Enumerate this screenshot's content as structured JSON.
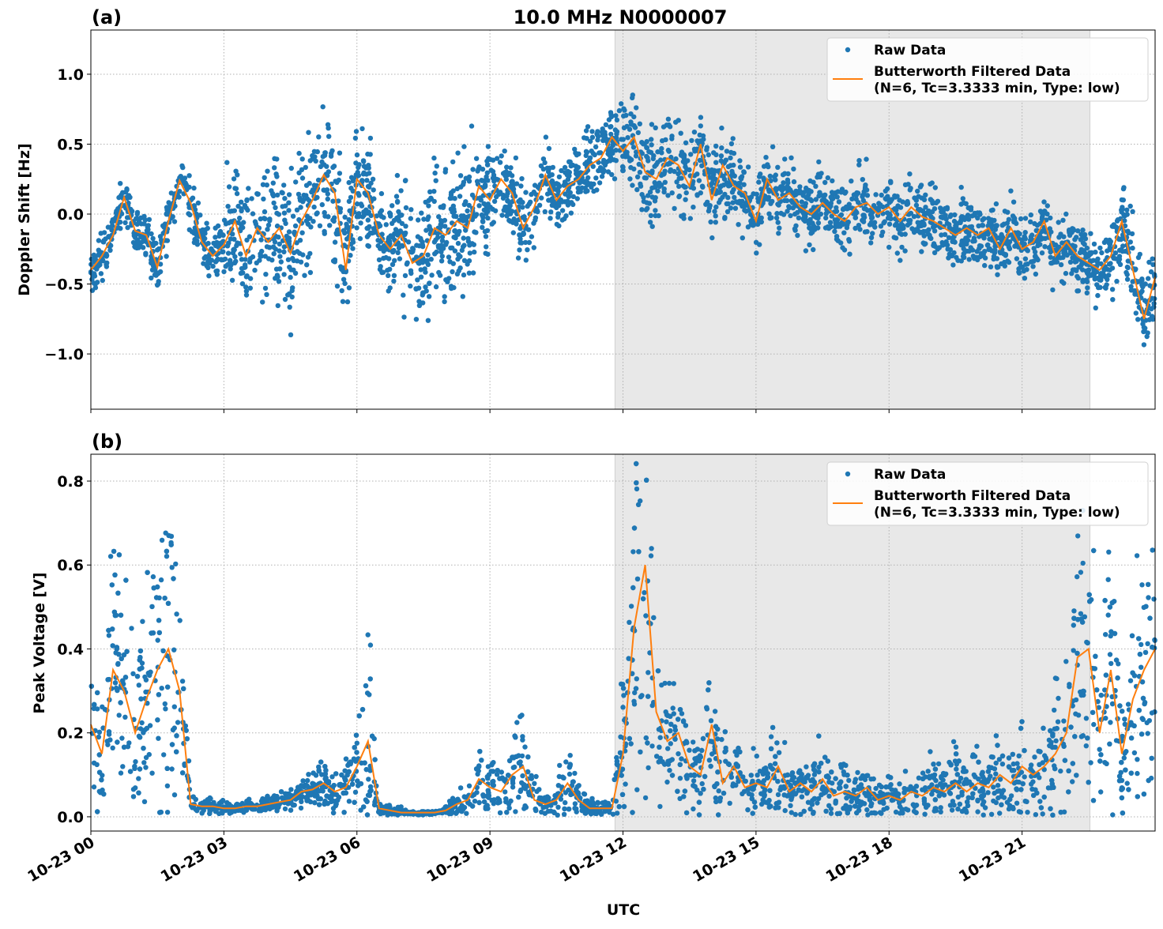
{
  "chart_data": [
    {
      "type": "scatter",
      "panel_label": "(a)",
      "title": "10.0 MHz N0000007",
      "xlabel": "",
      "ylabel": "Doppler Shift [Hz]",
      "xlim_hours": [
        0,
        24
      ],
      "ylim": [
        -1.395,
        1.316
      ],
      "yticks": [
        -1.0,
        -0.5,
        0.0,
        0.5,
        1.0
      ],
      "ytick_labels": [
        "−1.0",
        "−0.5",
        "0.0",
        "0.5",
        "1.0"
      ],
      "grid": true,
      "legend_placement": "top-right",
      "shaded_interval_utc": [
        "10-23 11:49",
        "10-23 22:32"
      ],
      "shaded_interval_hours": [
        11.82,
        22.53
      ],
      "series": [
        {
          "name": "Raw Data",
          "kind": "scatter",
          "color": "#1f77b4",
          "spread_per_hour": [
            0.12,
            0.15,
            0.15,
            0.4,
            0.45,
            0.4,
            0.3,
            0.4,
            0.4,
            0.25,
            0.2,
            0.2,
            0.3,
            0.3,
            0.25,
            0.2,
            0.2,
            0.2,
            0.2,
            0.2,
            0.2,
            0.2,
            0.2,
            0.3,
            0.35
          ]
        },
        {
          "name": "Butterworth Filtered Data\n(N=6, Tc=3.3333 min, Type: low)",
          "kind": "line",
          "color": "#ff7f0e",
          "x_step_hours": 0.25,
          "values": [
            -0.4,
            -0.3,
            -0.15,
            0.12,
            -0.12,
            -0.15,
            -0.38,
            -0.05,
            0.24,
            0.08,
            -0.2,
            -0.3,
            -0.22,
            -0.05,
            -0.3,
            -0.1,
            -0.2,
            -0.1,
            -0.28,
            -0.05,
            0.1,
            0.28,
            0.15,
            -0.4,
            0.25,
            0.15,
            -0.15,
            -0.25,
            -0.15,
            -0.35,
            -0.3,
            -0.1,
            -0.15,
            -0.05,
            -0.1,
            0.2,
            0.1,
            0.25,
            0.15,
            -0.1,
            0.05,
            0.28,
            0.1,
            0.2,
            0.25,
            0.35,
            0.4,
            0.55,
            0.45,
            0.55,
            0.3,
            0.25,
            0.4,
            0.35,
            0.2,
            0.5,
            0.1,
            0.35,
            0.2,
            0.15,
            -0.05,
            0.25,
            0.1,
            0.15,
            0.05,
            0.0,
            0.08,
            0.0,
            -0.05,
            0.05,
            0.08,
            0.0,
            0.05,
            -0.05,
            0.05,
            -0.02,
            -0.05,
            -0.1,
            -0.15,
            -0.1,
            -0.15,
            -0.1,
            -0.25,
            -0.1,
            -0.25,
            -0.2,
            -0.05,
            -0.3,
            -0.2,
            -0.3,
            -0.35,
            -0.4,
            -0.3,
            -0.05,
            -0.4,
            -0.75,
            -0.45
          ]
        }
      ]
    },
    {
      "type": "scatter",
      "panel_label": "(b)",
      "xlabel": "UTC",
      "ylabel": "Peak Voltage [V]",
      "xlim_hours": [
        0,
        24
      ],
      "ylim": [
        -0.034,
        0.864
      ],
      "yticks": [
        0.0,
        0.2,
        0.4,
        0.6,
        0.8
      ],
      "ytick_labels": [
        "0.0",
        "0.2",
        "0.4",
        "0.6",
        "0.8"
      ],
      "xticks_hours": [
        0,
        3,
        6,
        9,
        12,
        15,
        18,
        21
      ],
      "xtick_labels": [
        "10-23 00",
        "10-23 03",
        "10-23 06",
        "10-23 09",
        "10-23 12",
        "10-23 15",
        "10-23 18",
        "10-23 21"
      ],
      "grid": true,
      "legend_placement": "top-right",
      "shaded_interval_utc": [
        "10-23 11:49",
        "10-23 22:32"
      ],
      "shaded_interval_hours": [
        11.82,
        22.53
      ],
      "series": [
        {
          "name": "Raw Data",
          "kind": "scatter",
          "color": "#1f77b4",
          "relative_spread_per_hour": [
            0.9,
            0.9,
            0.8,
            0.5,
            0.5,
            0.7,
            1.2,
            0.5,
            0.7,
            0.9,
            1.0,
            1.0,
            0.9,
            0.9,
            0.9,
            0.9,
            1.0,
            1.0,
            1.0,
            1.0,
            1.0,
            0.9,
            0.9,
            0.9,
            0.8
          ]
        },
        {
          "name": "Butterworth Filtered Data\n(N=6, Tc=3.3333 min, Type: low)",
          "kind": "line",
          "color": "#ff7f0e",
          "x_step_hours": 0.25,
          "values": [
            0.22,
            0.15,
            0.35,
            0.3,
            0.2,
            0.28,
            0.35,
            0.4,
            0.3,
            0.03,
            0.025,
            0.025,
            0.02,
            0.02,
            0.025,
            0.025,
            0.03,
            0.035,
            0.04,
            0.06,
            0.065,
            0.08,
            0.06,
            0.07,
            0.12,
            0.18,
            0.02,
            0.015,
            0.01,
            0.01,
            0.01,
            0.01,
            0.015,
            0.03,
            0.04,
            0.09,
            0.07,
            0.06,
            0.1,
            0.12,
            0.04,
            0.03,
            0.04,
            0.08,
            0.04,
            0.02,
            0.02,
            0.02,
            0.15,
            0.45,
            0.6,
            0.25,
            0.18,
            0.2,
            0.12,
            0.1,
            0.22,
            0.08,
            0.12,
            0.07,
            0.08,
            0.07,
            0.12,
            0.06,
            0.08,
            0.06,
            0.09,
            0.05,
            0.06,
            0.05,
            0.07,
            0.04,
            0.05,
            0.04,
            0.06,
            0.05,
            0.07,
            0.06,
            0.08,
            0.06,
            0.08,
            0.07,
            0.1,
            0.08,
            0.12,
            0.1,
            0.12,
            0.15,
            0.2,
            0.38,
            0.4,
            0.2,
            0.35,
            0.15,
            0.28,
            0.35,
            0.4
          ]
        }
      ]
    }
  ],
  "legend": {
    "raw_label": "Raw Data",
    "filtered_line1": "Butterworth Filtered Data",
    "filtered_line2": "(N=6, Tc=3.3333 min, Type: low)"
  }
}
